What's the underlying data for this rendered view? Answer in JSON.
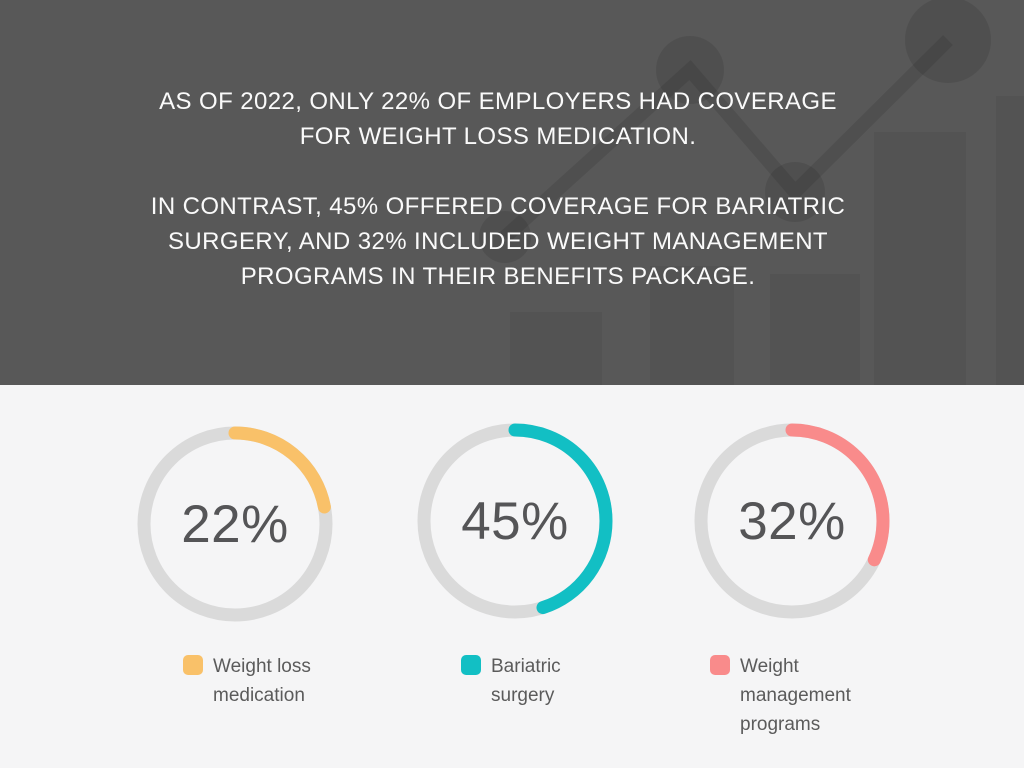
{
  "header": {
    "paragraph1": "AS OF 2022, ONLY 22% OF EMPLOYERS HAD COVERAGE FOR WEIGHT LOSS MEDICATION.",
    "paragraph2": "IN CONTRAST, 45% OFFERED COVERAGE FOR BARIATRIC SURGERY, AND 32% INCLUDED WEIGHT MANAGEMENT PROGRAMS IN THEIR BENEFITS PACKAGE."
  },
  "chart_data": {
    "type": "pie",
    "subtype": "donut-gauge-trio",
    "value_range": [
      0,
      100
    ],
    "start_angle": "top",
    "direction": "clockwise",
    "track_color": "#DADADA",
    "legend_position": "bottom",
    "series": [
      {
        "label": "Weight loss medication",
        "value": 22,
        "display": "22%",
        "color": "#F9C169"
      },
      {
        "label": "Bariatric surgery",
        "value": 45,
        "display": "45%",
        "color": "#12BFC4"
      },
      {
        "label": "Weight management programs",
        "value": 32,
        "display": "32%",
        "color": "#F98B8B"
      }
    ]
  },
  "colors": {
    "header_background": "#585858",
    "header_text": "#FAFAFA",
    "body_background": "#F5F5F6",
    "percent_text": "#555557",
    "legend_text": "#5B5B5B"
  }
}
